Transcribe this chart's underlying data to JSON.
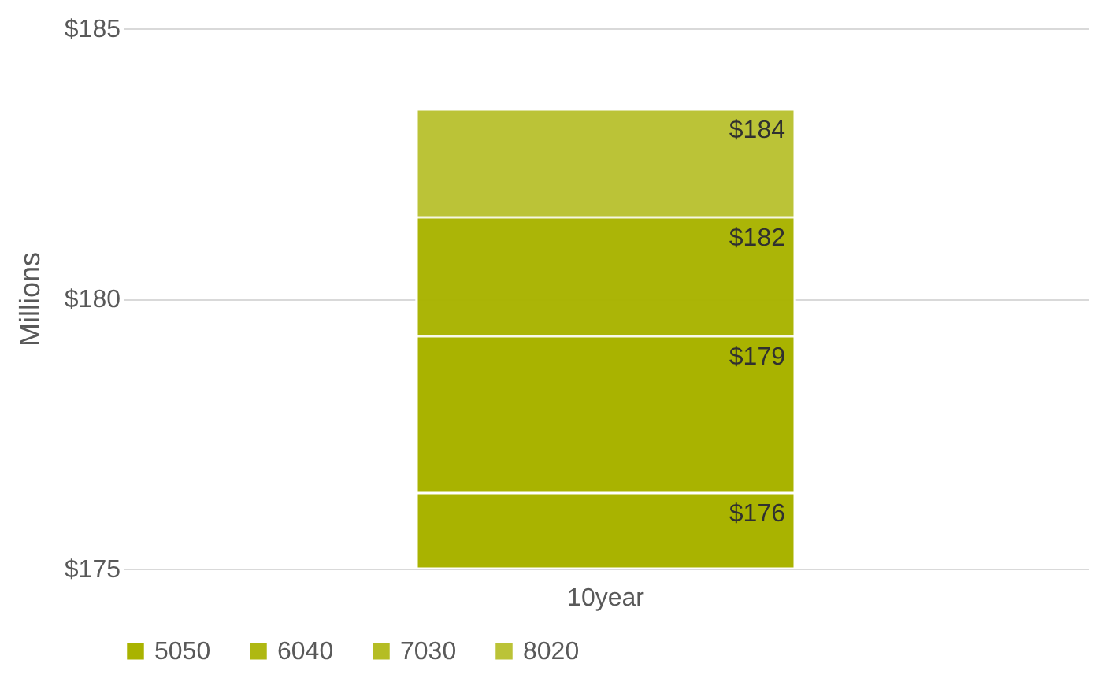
{
  "chart_data": {
    "type": "bar",
    "ylabel": "Millions",
    "categories": [
      "10year"
    ],
    "series": [
      {
        "name": "5050",
        "color": "#a9b300",
        "values": [
          176.4
        ],
        "value_labels": [
          "$176"
        ]
      },
      {
        "name": "6040",
        "color": "#a9b300",
        "values": [
          179.3
        ],
        "value_labels": [
          "$179"
        ]
      },
      {
        "name": "7030",
        "color": "#a9b300",
        "values": [
          181.5
        ],
        "value_labels": [
          "$182"
        ]
      },
      {
        "name": "8020",
        "color": "#a9b300",
        "values": [
          183.5
        ],
        "value_labels": [
          "$184"
        ]
      }
    ],
    "ylim": [
      175,
      185
    ],
    "yticks": [
      {
        "value": 175,
        "label": "$175"
      },
      {
        "value": 180,
        "label": "$180"
      },
      {
        "value": 185,
        "label": "$185"
      }
    ],
    "grid": "y",
    "legend": "bottom"
  }
}
